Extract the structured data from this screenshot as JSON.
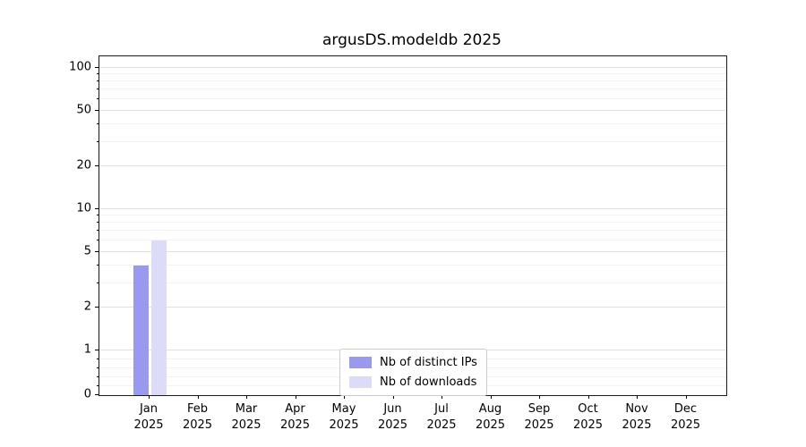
{
  "chart_data": {
    "type": "bar",
    "title": "argusDS.modeldb 2025",
    "categories": [
      "Jan",
      "Feb",
      "Mar",
      "Apr",
      "May",
      "Jun",
      "Jul",
      "Aug",
      "Sep",
      "Oct",
      "Nov",
      "Dec"
    ],
    "year_label": "2025",
    "series": [
      {
        "name": "Nb of distinct IPs",
        "color": "#9999ee",
        "values": [
          4,
          0,
          0,
          0,
          0,
          0,
          0,
          0,
          0,
          0,
          0,
          0
        ]
      },
      {
        "name": "Nb of downloads",
        "color": "#dcdcf8",
        "values": [
          6,
          0,
          0,
          0,
          0,
          0,
          0,
          0,
          0,
          0,
          0,
          0
        ]
      }
    ],
    "yscale": "symlog",
    "yticks": [
      0,
      1,
      2,
      5,
      10,
      20,
      50,
      100
    ],
    "yminor": [
      0.2,
      0.4,
      0.6,
      0.8,
      3,
      4,
      6,
      7,
      8,
      9,
      30,
      40,
      60,
      70,
      80,
      90
    ],
    "ylim": [
      0,
      110
    ],
    "xlabel": "",
    "ylabel": "",
    "grid": true,
    "legend_position": "lower center"
  }
}
